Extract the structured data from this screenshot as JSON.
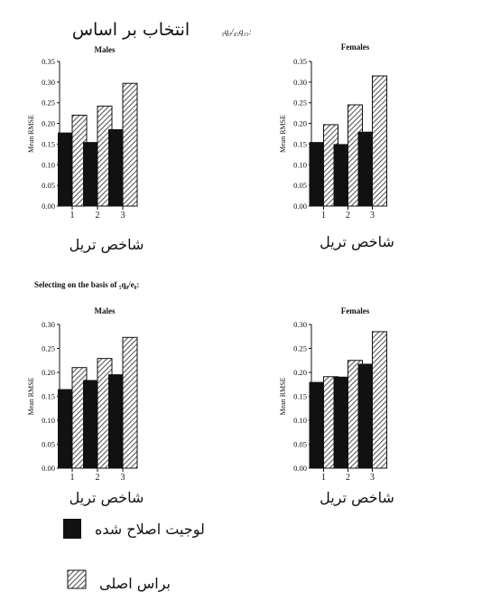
{
  "sections": [
    {
      "heading_rtl": "انتخاب بر اساس",
      "heading_formula": "₅q₀/₄₅q₁₅:"
    },
    {
      "heading": "Selecting on the basis of ₅q₀/e₀:"
    }
  ],
  "legend": [
    "لوجیت اصلاح شده",
    "براس اصلی"
  ],
  "colors": {
    "adjusted": "#111111",
    "original": "hatched"
  },
  "chart_data": [
    {
      "type": "bar",
      "title": "Males",
      "ylabel": "Mean RMSE",
      "xlabel": "شاخص تریل",
      "categories": [
        "1",
        "2",
        "3"
      ],
      "ylim": [
        0,
        0.35
      ],
      "yticks": [
        "0.00",
        "0.05",
        "0.10",
        "0.15",
        "0.20",
        "0.25",
        "0.30",
        "0.35"
      ],
      "series": [
        {
          "name": "لوجیت اصلاح شده",
          "values": [
            0.178,
            0.155,
            0.186
          ]
        },
        {
          "name": "براس اصلی",
          "values": [
            0.22,
            0.242,
            0.297
          ]
        }
      ]
    },
    {
      "type": "bar",
      "title": "Females",
      "ylabel": "Mean RMSE",
      "xlabel": "شاخص تریل",
      "categories": [
        "1",
        "2",
        "3"
      ],
      "ylim": [
        0,
        0.35
      ],
      "yticks": [
        "0.00",
        "0.05",
        "0.10",
        "0.15",
        "0.20",
        "0.25",
        "0.30",
        "0.35"
      ],
      "series": [
        {
          "name": "لوجیت اصلاح شده",
          "values": [
            0.155,
            0.15,
            0.18
          ]
        },
        {
          "name": "براس اصلی",
          "values": [
            0.197,
            0.245,
            0.315
          ]
        }
      ]
    },
    {
      "type": "bar",
      "title": "Males",
      "ylabel": "Mean RMSE",
      "xlabel": "شاخص تریل",
      "categories": [
        "1",
        "2",
        "3"
      ],
      "ylim": [
        0,
        0.3
      ],
      "yticks": [
        "0.00",
        "0.05",
        "0.10",
        "0.15",
        "0.20",
        "0.25",
        "0.30"
      ],
      "series": [
        {
          "name": "لوجیت اصلاح شده",
          "values": [
            0.165,
            0.184,
            0.196
          ]
        },
        {
          "name": "براس اصلی",
          "values": [
            0.21,
            0.229,
            0.273
          ]
        }
      ]
    },
    {
      "type": "bar",
      "title": "Females",
      "ylabel": "Mean RMSE",
      "xlabel": "شاخص تریل",
      "categories": [
        "1",
        "2",
        "3"
      ],
      "ylim": [
        0,
        0.3
      ],
      "yticks": [
        "0.00",
        "0.05",
        "0.10",
        "0.15",
        "0.20",
        "0.25",
        "0.30"
      ],
      "series": [
        {
          "name": "لوجیت اصلاح شده",
          "values": [
            0.18,
            0.191,
            0.218
          ]
        },
        {
          "name": "براس اصلی",
          "values": [
            0.191,
            0.225,
            0.285
          ]
        }
      ]
    }
  ]
}
